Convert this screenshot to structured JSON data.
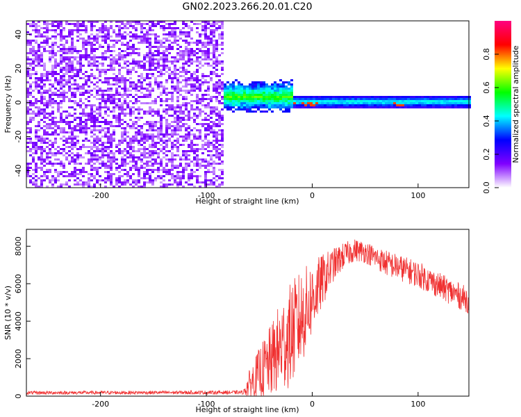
{
  "title": "GN02.2023.266.20.01.C20",
  "chart_data": [
    {
      "type": "heatmap",
      "xlabel": "Height of straight line (km)",
      "ylabel": "Frequency (Hz)",
      "xlim": [
        -270,
        148
      ],
      "ylim": [
        -50,
        48
      ],
      "xticks": [
        -200,
        -100,
        0,
        100
      ],
      "yticks": [
        -40,
        -20,
        0,
        20,
        40
      ],
      "colorbar": {
        "label": "Normalized spectral amplitude",
        "range": [
          0,
          1
        ],
        "ticks": [
          0.0,
          0.2,
          0.4,
          0.6,
          0.8
        ],
        "colormap": [
          "#ffffff",
          "#8000ff",
          "#0000ff",
          "#00ffff",
          "#00ff00",
          "#ffff00",
          "#ff0000",
          "#ff0080"
        ]
      },
      "regions": [
        {
          "x_range": [
            -270,
            -84
          ],
          "description_level": 0.25,
          "pattern": "noise"
        },
        {
          "x_range": [
            -96,
            -20
          ],
          "level": 0.45,
          "pattern": "broad band around 0 Hz"
        },
        {
          "x_range": [
            -20,
            148
          ],
          "level": 0.4,
          "pattern": "narrow band near 0 Hz with peaks"
        }
      ]
    },
    {
      "type": "line",
      "color": "#f03030",
      "xlabel": "Height of straight line (km)",
      "ylabel": "SNR (10 * v/v)",
      "xlim": [
        -270,
        148
      ],
      "ylim": [
        0,
        8900
      ],
      "xticks": [
        -200,
        -100,
        0,
        100
      ],
      "yticks": [
        0,
        2000,
        4000,
        6000,
        8000
      ],
      "envelope": {
        "x": [
          -270,
          -65,
          -60,
          -50,
          -40,
          -30,
          -20,
          -10,
          0,
          10,
          20,
          30,
          40,
          50,
          60,
          70,
          80,
          90,
          100,
          110,
          120,
          130,
          148
        ],
        "mean": [
          180,
          200,
          600,
          1200,
          1800,
          2600,
          3300,
          4200,
          5200,
          6200,
          7000,
          7500,
          7800,
          7700,
          7400,
          7100,
          6900,
          6700,
          6500,
          6200,
          5900,
          5600,
          5100
        ],
        "spread": [
          90,
          100,
          700,
          1400,
          1900,
          2500,
          2800,
          2600,
          2000,
          1400,
          900,
          700,
          600,
          600,
          600,
          700,
          700,
          700,
          700,
          700,
          700,
          700,
          700
        ]
      }
    }
  ]
}
